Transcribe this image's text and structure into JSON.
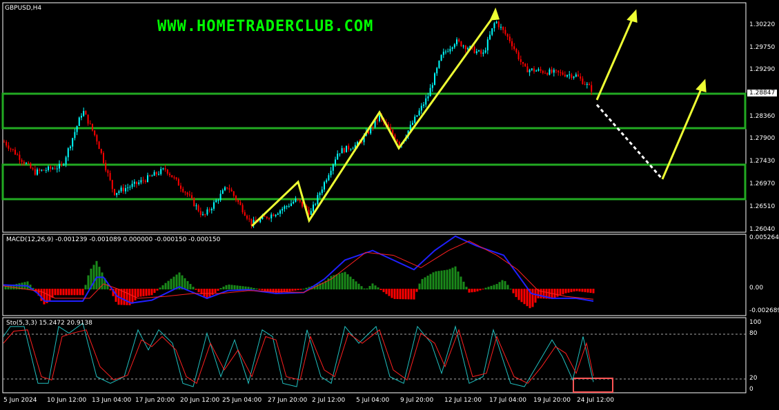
{
  "chart": {
    "symbol": "GBPUSD,H4",
    "watermark": "WWW.HOMETRADERCLUB.COM",
    "current_price": "1.28847",
    "price_axis": [
      "1.30220",
      "1.29750",
      "1.29290",
      "1.28360",
      "1.27900",
      "1.27430",
      "1.26970",
      "1.26510",
      "1.26040"
    ],
    "price_points": [
      [
        0,
        1.2793
      ],
      [
        50,
        1.2722
      ],
      [
        90,
        1.2735
      ],
      [
        120,
        1.2849
      ],
      [
        140,
        1.279
      ],
      [
        165,
        1.268
      ],
      [
        200,
        1.27
      ],
      [
        240,
        1.2729
      ],
      [
        270,
        1.268
      ],
      [
        295,
        1.2631
      ],
      [
        330,
        1.2694
      ],
      [
        365,
        1.2617
      ],
      [
        400,
        1.264
      ],
      [
        430,
        1.2666
      ],
      [
        450,
        1.2638
      ],
      [
        490,
        1.2764
      ],
      [
        520,
        1.278
      ],
      [
        550,
        1.2835
      ],
      [
        580,
        1.2779
      ],
      [
        620,
        1.2877
      ],
      [
        640,
        1.296
      ],
      [
        660,
        1.299
      ],
      [
        700,
        1.2962
      ],
      [
        718,
        1.3032
      ],
      [
        740,
        1.299
      ],
      [
        760,
        1.2933
      ],
      [
        800,
        1.2926
      ],
      [
        835,
        1.292
      ],
      [
        860,
        1.2888
      ]
    ],
    "colors": {
      "bull": "#00ffff",
      "bear": "#ff0000",
      "zone": "#22aa22",
      "arrow": "#eeff33"
    }
  },
  "macd": {
    "label": "MACD(12,26,9) -0.001239 -0.001089 0.000000 -0.000150 -0.000150",
    "axis": [
      "0.005264",
      "0.00",
      "-0.002689"
    ],
    "main": [
      [
        5,
        0.0004
      ],
      [
        40,
        0.0003
      ],
      [
        55,
        -0.0005
      ],
      [
        65,
        -0.0013
      ],
      [
        120,
        -0.0013
      ],
      [
        140,
        0.0012
      ],
      [
        150,
        0.0012
      ],
      [
        170,
        -0.0008
      ],
      [
        190,
        -0.0015
      ],
      [
        220,
        -0.0012
      ],
      [
        260,
        0.0002
      ],
      [
        300,
        -0.001
      ],
      [
        330,
        -0.0002
      ],
      [
        360,
        -0.0001
      ],
      [
        400,
        -0.0005
      ],
      [
        440,
        -0.0004
      ],
      [
        470,
        0.001
      ],
      [
        500,
        0.003
      ],
      [
        540,
        0.004
      ],
      [
        570,
        0.003
      ],
      [
        600,
        0.002
      ],
      [
        630,
        0.004
      ],
      [
        660,
        0.0055
      ],
      [
        690,
        0.0045
      ],
      [
        730,
        0.0035
      ],
      [
        770,
        -0.0005
      ],
      [
        800,
        -0.001
      ],
      [
        835,
        -0.001
      ],
      [
        860,
        -0.0013
      ]
    ],
    "signal": [
      [
        5,
        0.0003
      ],
      [
        60,
        -0.0003
      ],
      [
        80,
        -0.001
      ],
      [
        130,
        -0.001
      ],
      [
        150,
        0.0005
      ],
      [
        170,
        0.0
      ],
      [
        200,
        -0.001
      ],
      [
        240,
        -0.0008
      ],
      [
        280,
        -0.0005
      ],
      [
        320,
        -0.0005
      ],
      [
        360,
        -0.0002
      ],
      [
        440,
        -0.0004
      ],
      [
        480,
        0.001
      ],
      [
        530,
        0.0038
      ],
      [
        570,
        0.0035
      ],
      [
        610,
        0.0022
      ],
      [
        650,
        0.004
      ],
      [
        680,
        0.005
      ],
      [
        720,
        0.0035
      ],
      [
        750,
        0.002
      ],
      [
        780,
        -0.0002
      ],
      [
        820,
        -0.0008
      ],
      [
        860,
        -0.0011
      ]
    ]
  },
  "stoch": {
    "label": "Sto(5,3,3) 15.2472 20.9138",
    "axis": [
      "100",
      "80",
      "20",
      "0"
    ],
    "k": [
      [
        5,
        80
      ],
      [
        15,
        95
      ],
      [
        35,
        95
      ],
      [
        55,
        10
      ],
      [
        70,
        10
      ],
      [
        85,
        95
      ],
      [
        100,
        85
      ],
      [
        120,
        100
      ],
      [
        140,
        20
      ],
      [
        160,
        10
      ],
      [
        180,
        20
      ],
      [
        200,
        90
      ],
      [
        215,
        60
      ],
      [
        230,
        90
      ],
      [
        250,
        70
      ],
      [
        265,
        10
      ],
      [
        280,
        5
      ],
      [
        300,
        85
      ],
      [
        320,
        20
      ],
      [
        340,
        75
      ],
      [
        360,
        10
      ],
      [
        380,
        90
      ],
      [
        395,
        80
      ],
      [
        410,
        10
      ],
      [
        430,
        5
      ],
      [
        445,
        90
      ],
      [
        465,
        20
      ],
      [
        480,
        10
      ],
      [
        500,
        95
      ],
      [
        520,
        70
      ],
      [
        545,
        95
      ],
      [
        565,
        20
      ],
      [
        585,
        10
      ],
      [
        605,
        95
      ],
      [
        625,
        70
      ],
      [
        640,
        25
      ],
      [
        660,
        95
      ],
      [
        680,
        10
      ],
      [
        700,
        20
      ],
      [
        715,
        90
      ],
      [
        740,
        10
      ],
      [
        760,
        5
      ],
      [
        780,
        40
      ],
      [
        800,
        75
      ],
      [
        815,
        50
      ],
      [
        830,
        15
      ],
      [
        845,
        80
      ],
      [
        860,
        12
      ]
    ],
    "d": [
      [
        5,
        70
      ],
      [
        20,
        88
      ],
      [
        40,
        90
      ],
      [
        60,
        20
      ],
      [
        75,
        15
      ],
      [
        90,
        80
      ],
      [
        105,
        85
      ],
      [
        125,
        90
      ],
      [
        145,
        35
      ],
      [
        165,
        15
      ],
      [
        185,
        22
      ],
      [
        205,
        75
      ],
      [
        220,
        65
      ],
      [
        235,
        80
      ],
      [
        255,
        60
      ],
      [
        270,
        20
      ],
      [
        285,
        10
      ],
      [
        305,
        70
      ],
      [
        325,
        30
      ],
      [
        345,
        60
      ],
      [
        365,
        20
      ],
      [
        385,
        80
      ],
      [
        400,
        75
      ],
      [
        415,
        20
      ],
      [
        435,
        15
      ],
      [
        450,
        80
      ],
      [
        470,
        30
      ],
      [
        485,
        20
      ],
      [
        505,
        85
      ],
      [
        525,
        70
      ],
      [
        550,
        90
      ],
      [
        570,
        30
      ],
      [
        590,
        15
      ],
      [
        610,
        85
      ],
      [
        630,
        70
      ],
      [
        645,
        35
      ],
      [
        665,
        90
      ],
      [
        685,
        20
      ],
      [
        705,
        25
      ],
      [
        720,
        80
      ],
      [
        745,
        20
      ],
      [
        765,
        10
      ],
      [
        785,
        35
      ],
      [
        805,
        65
      ],
      [
        820,
        55
      ],
      [
        835,
        25
      ],
      [
        850,
        70
      ],
      [
        860,
        21
      ]
    ]
  },
  "dates": [
    "5 Jun 2024",
    "10 Jun 12:00",
    "13 Jun 04:00",
    "17 Jun 20:00",
    "20 Jun 12:00",
    "25 Jun 04:00",
    "27 Jun 20:00",
    "2 Jul 12:00",
    "5 Jul 04:00",
    "9 Jul 20:00",
    "12 Jul 12:00",
    "17 Jul 04:00",
    "19 Jul 20:00",
    "24 Jul 12:00"
  ]
}
